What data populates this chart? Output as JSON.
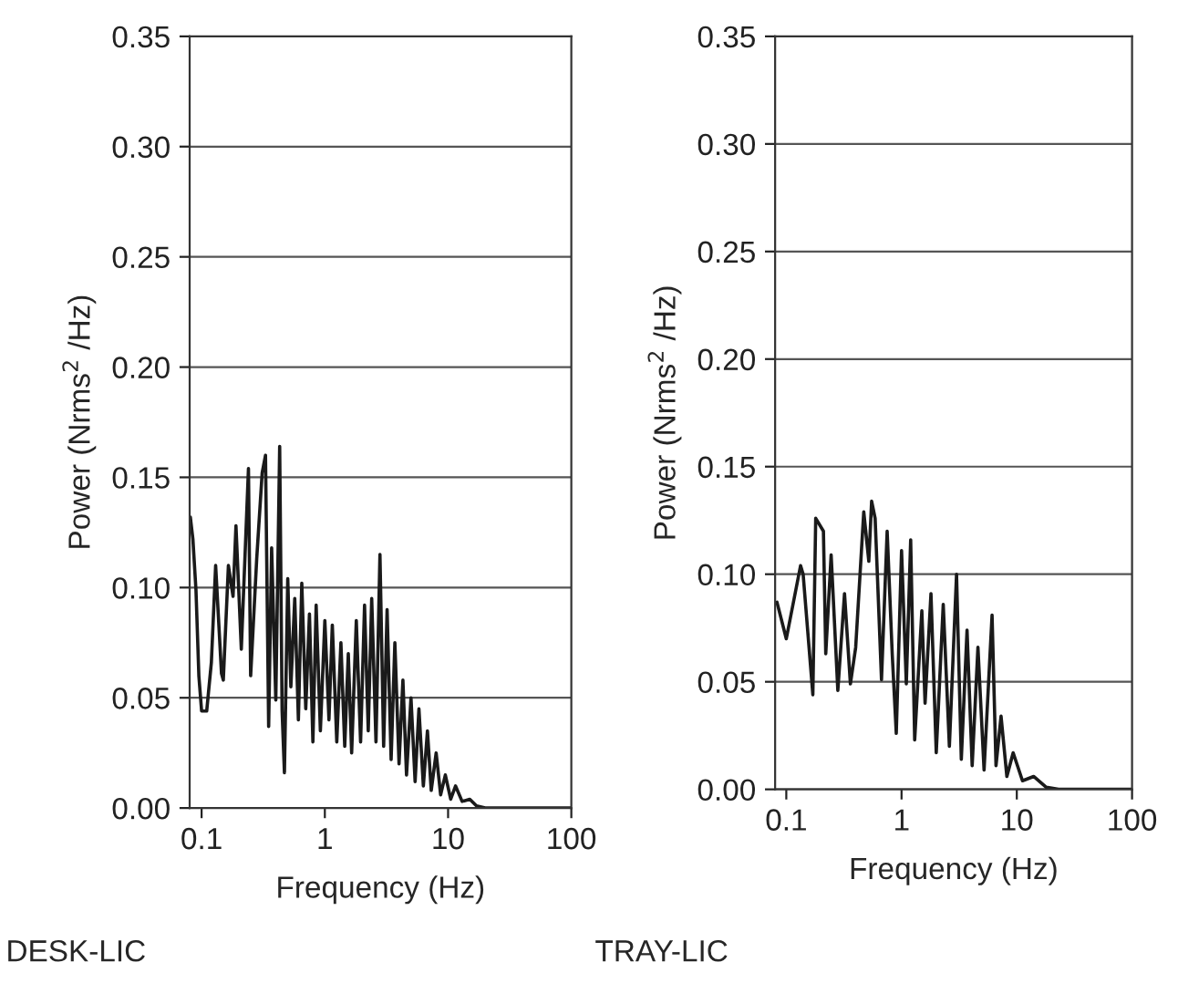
{
  "chart_data": [
    {
      "type": "line",
      "xlabel": "Frequency (Hz)",
      "ylabel": "Power (Nrms$^{2}$ /Hz)",
      "annotations": [
        "DESK-LIC"
      ],
      "log": "x",
      "grid": "y",
      "xlim": [
        0.08,
        100
      ],
      "xticks": [
        0.1,
        1,
        10,
        100
      ],
      "ylim": [
        0,
        0.35
      ],
      "yticks": [
        {
          "value": 0,
          "label": "0.00"
        },
        {
          "value": 0.05,
          "label": "0.05"
        },
        {
          "value": 0.1,
          "label": "0.10"
        },
        {
          "value": 0.15,
          "label": "0.15"
        },
        {
          "value": 0.2,
          "label": "0.20"
        },
        {
          "value": 0.25,
          "label": "0.25"
        },
        {
          "value": 0.3,
          "label": "0.30"
        },
        {
          "value": 0.35,
          "label": "0.35"
        }
      ],
      "series": [
        {
          "color": "#1a1a1a",
          "x": [
            0.081,
            0.085,
            0.09,
            0.095,
            0.1,
            0.11,
            0.12,
            0.13,
            0.145,
            0.15,
            0.165,
            0.18,
            0.19,
            0.21,
            0.24,
            0.25,
            0.28,
            0.31,
            0.33,
            0.35,
            0.37,
            0.4,
            0.43,
            0.45,
            0.47,
            0.5,
            0.53,
            0.57,
            0.61,
            0.65,
            0.7,
            0.75,
            0.8,
            0.85,
            0.92,
            1.0,
            1.08,
            1.15,
            1.25,
            1.35,
            1.45,
            1.55,
            1.65,
            1.8,
            1.95,
            2.1,
            2.25,
            2.4,
            2.6,
            2.8,
            3.0,
            3.2,
            3.45,
            3.7,
            4.0,
            4.3,
            4.6,
            5.0,
            5.4,
            5.8,
            6.3,
            6.8,
            7.3,
            8.0,
            8.7,
            9.5,
            10.5,
            11.5,
            13,
            15,
            17,
            20,
            30,
            50,
            100
          ],
          "values": [
            0.132,
            0.122,
            0.099,
            0.06,
            0.044,
            0.044,
            0.066,
            0.11,
            0.061,
            0.058,
            0.11,
            0.096,
            0.128,
            0.072,
            0.154,
            0.06,
            0.113,
            0.152,
            0.16,
            0.037,
            0.118,
            0.049,
            0.164,
            0.044,
            0.016,
            0.104,
            0.055,
            0.095,
            0.04,
            0.102,
            0.045,
            0.088,
            0.03,
            0.092,
            0.035,
            0.085,
            0.04,
            0.083,
            0.03,
            0.075,
            0.028,
            0.07,
            0.025,
            0.085,
            0.03,
            0.092,
            0.035,
            0.095,
            0.03,
            0.115,
            0.028,
            0.09,
            0.022,
            0.075,
            0.02,
            0.058,
            0.015,
            0.05,
            0.012,
            0.045,
            0.01,
            0.035,
            0.008,
            0.025,
            0.006,
            0.015,
            0.004,
            0.01,
            0.003,
            0.004,
            0.001,
            0.0,
            0.0,
            0.0,
            0.0
          ]
        }
      ]
    },
    {
      "type": "line",
      "xlabel": "Frequency (Hz)",
      "ylabel": "Power (Nrms$^{2}$ /Hz)",
      "annotations": [
        "TRAY-LIC"
      ],
      "log": "x",
      "grid": "y",
      "xlim": [
        0.08,
        100
      ],
      "xticks": [
        0.1,
        1,
        10,
        100
      ],
      "ylim": [
        0,
        0.35
      ],
      "yticks": [
        {
          "value": 0,
          "label": "0.00"
        },
        {
          "value": 0.05,
          "label": "0.05"
        },
        {
          "value": 0.1,
          "label": "0.10"
        },
        {
          "value": 0.15,
          "label": "0.15"
        },
        {
          "value": 0.2,
          "label": "0.20"
        },
        {
          "value": 0.25,
          "label": "0.25"
        },
        {
          "value": 0.3,
          "label": "0.30"
        },
        {
          "value": 0.35,
          "label": "0.35"
        }
      ],
      "series": [
        {
          "color": "#1a1a1a",
          "x": [
            0.083,
            0.1,
            0.133,
            0.14,
            0.17,
            0.18,
            0.21,
            0.22,
            0.245,
            0.28,
            0.32,
            0.36,
            0.4,
            0.47,
            0.52,
            0.55,
            0.59,
            0.67,
            0.75,
            0.83,
            0.9,
            1.0,
            1.1,
            1.2,
            1.3,
            1.5,
            1.6,
            1.8,
            2.0,
            2.3,
            2.6,
            3.0,
            3.3,
            3.7,
            4.1,
            4.6,
            5.2,
            6.1,
            6.6,
            7.3,
            8.2,
            9.3,
            11.2,
            14,
            18,
            23,
            100
          ],
          "values": [
            0.087,
            0.07,
            0.104,
            0.1,
            0.044,
            0.126,
            0.12,
            0.063,
            0.109,
            0.046,
            0.091,
            0.049,
            0.066,
            0.129,
            0.106,
            0.134,
            0.126,
            0.051,
            0.12,
            0.063,
            0.026,
            0.111,
            0.049,
            0.116,
            0.023,
            0.083,
            0.04,
            0.091,
            0.017,
            0.086,
            0.02,
            0.1,
            0.014,
            0.074,
            0.011,
            0.066,
            0.009,
            0.081,
            0.011,
            0.034,
            0.006,
            0.017,
            0.004,
            0.006,
            0.001,
            0.0,
            0.0
          ]
        }
      ]
    }
  ]
}
